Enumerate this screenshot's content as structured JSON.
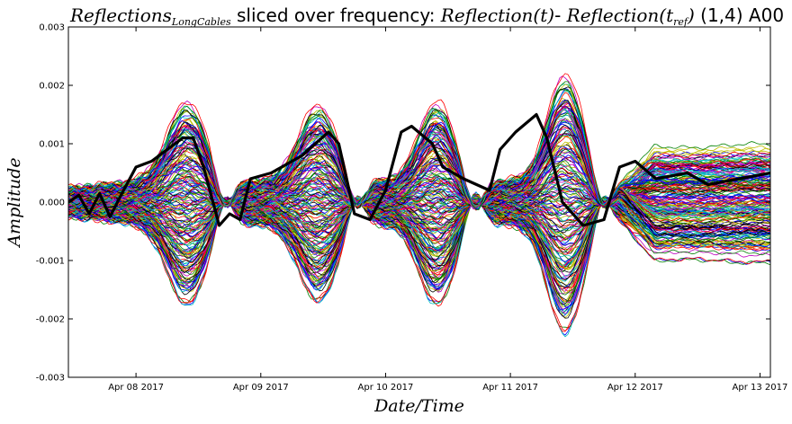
{
  "chart_data": {
    "type": "line",
    "title": {
      "part1": "Reflections",
      "part1_sub": "LongCables",
      "part2": " sliced over frequency: ",
      "part3": "Reflection(t)",
      "part4": "- ",
      "part5": "Reflection(t",
      "part5_sub": "ref",
      "part6": ")",
      "part7": " (1,4) A00"
    },
    "xlabel": "Date/Time",
    "ylabel": "Amplitude",
    "xlim": [
      "2017-04-07 11:00",
      "2017-04-13 02:00"
    ],
    "ylim": [
      -0.003,
      0.003
    ],
    "x_ticks": [
      "Apr 08 2017",
      "Apr 09 2017",
      "Apr 10 2017",
      "Apr 11 2017",
      "Apr 12 2017",
      "Apr 13 2017"
    ],
    "y_ticks": [
      "0.003",
      "0.002",
      "0.001",
      "0.000",
      "-0.001",
      "-0.002",
      "-0.003"
    ],
    "grid": false,
    "legend": "none",
    "series_count_approx": 200,
    "palette": [
      "#0000ff",
      "#008000",
      "#ff0000",
      "#00bfbf",
      "#bf00bf",
      "#bfbf00",
      "#000000"
    ],
    "highlight_series": {
      "color": "#000000",
      "points": [
        [
          "2017-04-07 11:00",
          0.0
        ],
        [
          "2017-04-07 13:00",
          0.00012
        ],
        [
          "2017-04-07 15:00",
          -0.0002
        ],
        [
          "2017-04-07 17:00",
          0.00015
        ],
        [
          "2017-04-07 19:00",
          -0.00025
        ],
        [
          "2017-04-07 21:00",
          0.0001
        ],
        [
          "2017-04-08 00:00",
          0.0006
        ],
        [
          "2017-04-08 03:00",
          0.0007
        ],
        [
          "2017-04-08 06:00",
          0.0009
        ],
        [
          "2017-04-08 09:00",
          0.0011
        ],
        [
          "2017-04-08 11:00",
          0.0011
        ],
        [
          "2017-04-08 13:00",
          0.0006
        ],
        [
          "2017-04-08 16:00",
          -0.0004
        ],
        [
          "2017-04-08 18:00",
          -0.0002
        ],
        [
          "2017-04-08 20:00",
          -0.0003
        ],
        [
          "2017-04-08 22:00",
          0.0004
        ],
        [
          "2017-04-09 02:00",
          0.0005
        ],
        [
          "2017-04-09 08:00",
          0.0008
        ],
        [
          "2017-04-09 13:00",
          0.0012
        ],
        [
          "2017-04-09 15:00",
          0.001
        ],
        [
          "2017-04-09 18:00",
          -0.0002
        ],
        [
          "2017-04-09 21:00",
          -0.0003
        ],
        [
          "2017-04-10 00:00",
          0.0002
        ],
        [
          "2017-04-10 03:00",
          0.0012
        ],
        [
          "2017-04-10 05:00",
          0.0013
        ],
        [
          "2017-04-10 09:00",
          0.001
        ],
        [
          "2017-04-10 11:00",
          0.0006
        ],
        [
          "2017-04-10 15:00",
          0.0004
        ],
        [
          "2017-04-10 20:00",
          0.0002
        ],
        [
          "2017-04-10 22:00",
          0.0009
        ],
        [
          "2017-04-11 01:00",
          0.0012
        ],
        [
          "2017-04-11 05:00",
          0.0015
        ],
        [
          "2017-04-11 07:00",
          0.0011
        ],
        [
          "2017-04-11 10:00",
          0.0
        ],
        [
          "2017-04-11 14:00",
          -0.0004
        ],
        [
          "2017-04-11 18:00",
          -0.0003
        ],
        [
          "2017-04-11 21:00",
          0.0006
        ],
        [
          "2017-04-12 00:00",
          0.0007
        ],
        [
          "2017-04-12 04:00",
          0.0004
        ],
        [
          "2017-04-12 10:00",
          0.0005
        ],
        [
          "2017-04-12 14:00",
          0.0003
        ],
        [
          "2017-04-12 20:00",
          0.0004
        ],
        [
          "2017-04-13 02:00",
          0.0005
        ]
      ]
    }
  }
}
